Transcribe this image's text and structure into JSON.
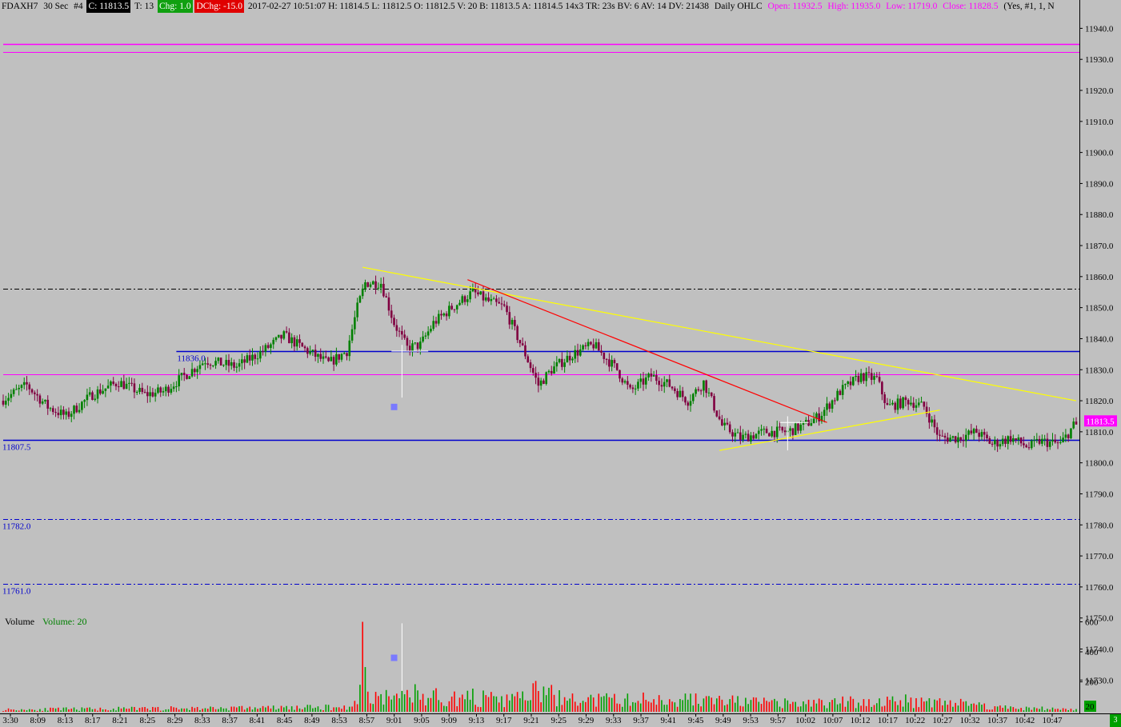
{
  "header": {
    "symbol": "FDAXH7",
    "interval": "30 Sec",
    "chart_num": "#4",
    "close_badge": "C: 11813.5",
    "ticks": "T: 13",
    "chg_badge": "Chg: 1.0",
    "dchg_badge": "DChg: -15.0",
    "info": "2017-02-27 10:51:07 H: 11814.5 L: 11812.5 O: 11812.5 V: 20 B: 11813.5 A: 11814.5 14x3 TR: 23s BV: 6 AV: 14 DV: 21438",
    "study_name": "Daily OHLC",
    "open": "Open: 11932.5",
    "high": "High: 11935.0",
    "low": "Low: 11719.0",
    "close": "Close: 11828.5",
    "tail": "(Yes, #1, 1, N"
  },
  "volume_label": "Volume",
  "volume_value": "Volume: 20",
  "corner_label": "3",
  "colors": {
    "background": "#c0c0c0",
    "up": "#008000",
    "down": "#800040",
    "volume_up": "#00a000",
    "volume_down": "#ff0000",
    "magenta": "#ff00ff",
    "level_blue": "#0000cc",
    "yellow_trend": "#ffff00",
    "red_trend": "#ff0000"
  },
  "chart_data": {
    "type": "candlestick",
    "price_axis": {
      "ylim": [
        11719,
        11945
      ],
      "ticks": [
        11940,
        11930,
        11920,
        11910,
        11900,
        11890,
        11880,
        11870,
        11860,
        11850,
        11840,
        11830,
        11820,
        11810,
        11800,
        11790,
        11780,
        11770,
        11760,
        11750,
        11740,
        11730
      ]
    },
    "volume_axis": {
      "ylim": [
        0,
        640
      ],
      "ticks": [
        600,
        400,
        200
      ],
      "current_label": "20"
    },
    "time_axis": {
      "labels": [
        "3:30",
        "8:09",
        "8:13",
        "8:17",
        "8:21",
        "8:25",
        "8:29",
        "8:33",
        "8:37",
        "8:41",
        "8:45",
        "8:49",
        "8:53",
        "8:57",
        "9:01",
        "9:05",
        "9:09",
        "9:13",
        "9:17",
        "9:21",
        "9:25",
        "9:29",
        "9:33",
        "9:37",
        "9:41",
        "9:45",
        "9:49",
        "9:53",
        "9:57",
        "10:02",
        "10:07",
        "10:12",
        "10:17",
        "10:22",
        "10:27",
        "10:32",
        "10:37",
        "10:42",
        "10:47"
      ]
    },
    "price_anchors": [
      [
        0,
        11820
      ],
      [
        10,
        11825
      ],
      [
        18,
        11818
      ],
      [
        25,
        11815
      ],
      [
        35,
        11822
      ],
      [
        45,
        11826
      ],
      [
        55,
        11822
      ],
      [
        62,
        11823
      ],
      [
        70,
        11828
      ],
      [
        78,
        11833
      ],
      [
        90,
        11831
      ],
      [
        100,
        11836
      ],
      [
        108,
        11841
      ],
      [
        117,
        11836
      ],
      [
        125,
        11832
      ],
      [
        132,
        11836
      ],
      [
        136,
        11850
      ],
      [
        139,
        11858
      ],
      [
        145,
        11858
      ],
      [
        150,
        11845
      ],
      [
        155,
        11837
      ],
      [
        160,
        11838
      ],
      [
        165,
        11845
      ],
      [
        172,
        11850
      ],
      [
        180,
        11855
      ],
      [
        186,
        11852
      ],
      [
        192,
        11850
      ],
      [
        200,
        11835
      ],
      [
        205,
        11825
      ],
      [
        210,
        11830
      ],
      [
        218,
        11835
      ],
      [
        226,
        11838
      ],
      [
        235,
        11830
      ],
      [
        240,
        11823
      ],
      [
        248,
        11828
      ],
      [
        255,
        11825
      ],
      [
        262,
        11820
      ],
      [
        268,
        11826
      ],
      [
        275,
        11812
      ],
      [
        282,
        11808
      ],
      [
        292,
        11810
      ],
      [
        300,
        11810
      ],
      [
        306,
        11812
      ],
      [
        312,
        11815
      ],
      [
        320,
        11823
      ],
      [
        328,
        11828
      ],
      [
        334,
        11827
      ],
      [
        338,
        11818
      ],
      [
        346,
        11820
      ],
      [
        352,
        11818
      ],
      [
        358,
        11808
      ],
      [
        365,
        11808
      ],
      [
        372,
        11810
      ],
      [
        378,
        11806
      ],
      [
        385,
        11808
      ],
      [
        392,
        11805
      ],
      [
        396,
        11807
      ],
      [
        404,
        11806
      ],
      [
        409,
        11812
      ]
    ],
    "volume_anchors": [
      [
        0,
        20
      ],
      [
        130,
        40
      ],
      [
        135,
        70
      ],
      [
        137,
        600
      ],
      [
        139,
        150
      ],
      [
        143,
        140
      ],
      [
        149,
        120
      ],
      [
        152,
        160
      ],
      [
        155,
        150
      ],
      [
        157,
        210
      ],
      [
        160,
        100
      ],
      [
        164,
        150
      ],
      [
        170,
        110
      ],
      [
        178,
        130
      ],
      [
        183,
        120
      ],
      [
        190,
        90
      ],
      [
        205,
        180
      ],
      [
        215,
        100
      ],
      [
        260,
        110
      ],
      [
        300,
        70
      ],
      [
        330,
        90
      ],
      [
        355,
        100
      ],
      [
        372,
        60
      ],
      [
        380,
        40
      ],
      [
        409,
        20
      ]
    ],
    "levels": [
      {
        "price": 11935.0,
        "style": "solid",
        "color": "magenta",
        "label": ""
      },
      {
        "price": 11932.5,
        "style": "thin",
        "color": "magenta",
        "label": ""
      },
      {
        "price": 11856.0,
        "style": "dashdot",
        "color": "black",
        "label": ""
      },
      {
        "price": 11836.0,
        "style": "solid",
        "color": "level_blue",
        "label": "11836.0",
        "from_bar": 66
      },
      {
        "price": 11828.5,
        "style": "thin",
        "color": "magenta",
        "label": ""
      },
      {
        "price": 11807.5,
        "style": "solid",
        "color": "level_blue",
        "label": "11807.5"
      },
      {
        "price": 11782.0,
        "style": "dashdot",
        "color": "level_blue",
        "label": "11782.0"
      },
      {
        "price": 11761.0,
        "style": "dashdot",
        "color": "level_blue",
        "label": "11761.0"
      }
    ],
    "trendlines": [
      {
        "color": "yellow_trend",
        "from": [
          137,
          11863
        ],
        "to": [
          409,
          11820
        ]
      },
      {
        "color": "red_trend",
        "from": [
          177,
          11859
        ],
        "to": [
          314,
          11813
        ]
      },
      {
        "color": "yellow_trend",
        "from": [
          273,
          11804
        ],
        "to": [
          357,
          11817
        ]
      }
    ],
    "last_price": "11813.5"
  }
}
